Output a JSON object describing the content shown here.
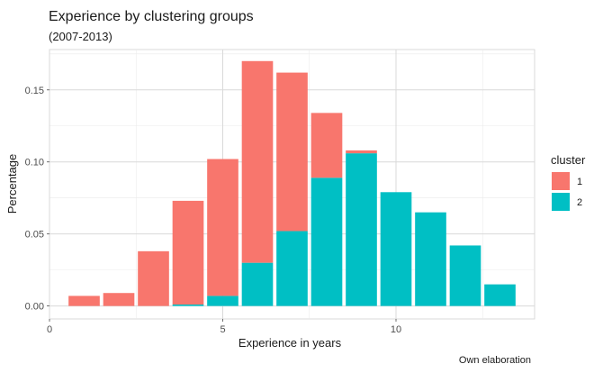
{
  "chart_data": {
    "type": "bar",
    "stacked": true,
    "title": "Experience by clustering groups",
    "subtitle": "(2007-2013)",
    "xlabel": "Experience in years",
    "ylabel": "Percentage",
    "caption": "Own elaboration",
    "x": [
      1,
      2,
      3,
      4,
      5,
      6,
      7,
      8,
      9,
      10,
      11,
      12,
      13
    ],
    "xlim": [
      0,
      14
    ],
    "ylim": [
      -0.009,
      0.178
    ],
    "x_ticks": [
      0,
      5,
      10
    ],
    "x_tick_labels": [
      "0",
      "5",
      "10"
    ],
    "y_ticks": [
      0.0,
      0.05,
      0.1,
      0.15
    ],
    "y_tick_labels": [
      "0.00",
      "0.05",
      "0.10",
      "0.15"
    ],
    "grid": true,
    "legend": {
      "title": "cluster",
      "position": "right"
    },
    "series": [
      {
        "name": "2",
        "color": "#00BFC4",
        "values": [
          0,
          0,
          0,
          0.001,
          0.007,
          0.03,
          0.052,
          0.089,
          0.106,
          0.079,
          0.065,
          0.042,
          0.015
        ]
      },
      {
        "name": "1",
        "color": "#F8766D",
        "values": [
          0.007,
          0.009,
          0.038,
          0.072,
          0.095,
          0.14,
          0.11,
          0.045,
          0.002,
          0,
          0,
          0,
          0
        ]
      }
    ],
    "legend_order": [
      "1",
      "2"
    ]
  }
}
